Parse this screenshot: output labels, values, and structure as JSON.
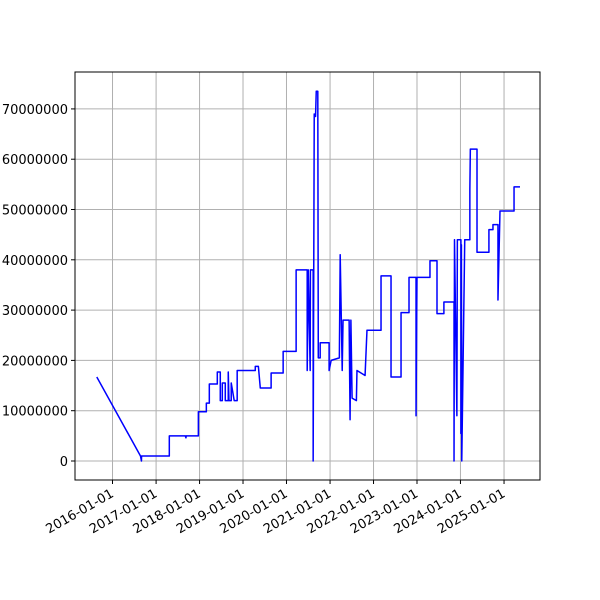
{
  "chart_data": {
    "type": "line",
    "x": [
      "2015-08-22",
      "2016-08-23",
      "2016-08-31",
      "2016-09-01",
      "2017-04-22",
      "2017-04-22",
      "2017-09-03",
      "2017-09-09",
      "2017-09-10",
      "2017-12-22",
      "2017-12-22",
      "2018-02-27",
      "2018-02-27",
      "2018-03-24",
      "2018-03-24",
      "2018-05-30",
      "2018-05-30",
      "2018-06-24",
      "2018-06-24",
      "2018-07-11",
      "2018-07-11",
      "2018-08-05",
      "2018-08-05",
      "2018-08-30",
      "2018-08-30",
      "2018-09-05",
      "2018-09-24",
      "2018-09-24",
      "2018-10-19",
      "2018-11-13",
      "2018-11-13",
      "2019-04-14",
      "2019-04-14",
      "2019-05-10",
      "2019-05-26",
      "2019-08-25",
      "2019-08-25",
      "2019-12-04",
      "2019-12-04",
      "2020-03-22",
      "2020-03-22",
      "2020-06-23",
      "2020-06-23",
      "2020-07-02",
      "2020-07-18",
      "2020-07-20",
      "2020-08-12",
      "2020-08-12",
      "2020-08-21",
      "2020-09-01",
      "2020-09-07",
      "2020-09-20",
      "2020-09-24",
      "2020-10-10",
      "2020-10-10",
      "2020-12-24",
      "2020-12-24",
      "2021-01-10",
      "2021-03-20",
      "2021-03-27",
      "2021-04-13",
      "2021-04-20",
      "2021-06-10",
      "2021-06-18",
      "2021-06-25",
      "2021-07-05",
      "2021-08-10",
      "2021-08-15",
      "2021-10-22",
      "2021-11-07",
      "2022-03-05",
      "2022-03-05",
      "2022-05-28",
      "2022-05-28",
      "2022-08-20",
      "2022-08-20",
      "2022-10-26",
      "2022-10-26",
      "2022-12-24",
      "2022-12-24",
      "2023-01-01",
      "2023-04-20",
      "2023-04-20",
      "2023-06-18",
      "2023-06-18",
      "2023-08-15",
      "2023-08-15",
      "2023-11-08",
      "2023-11-08",
      "2023-11-12",
      "2023-12-02",
      "2023-12-06",
      "2024-01-05",
      "2024-01-05",
      "2024-01-09",
      "2024-01-12",
      "2024-02-06",
      "2024-03-20",
      "2024-03-20",
      "2024-03-24",
      "2024-05-19",
      "2024-05-19",
      "2024-08-27",
      "2024-08-27",
      "2024-09-30",
      "2024-09-30",
      "2024-11-11",
      "2024-11-11",
      "2024-11-28",
      "2025-03-26",
      "2025-03-26",
      "2025-05-15"
    ],
    "series": [
      {
        "color": "#0000ff",
        "values": [
          16700000,
          1000000,
          0,
          1000000,
          1000000,
          5000000,
          5000000,
          4600000,
          5000000,
          5000000,
          9800000,
          9800000,
          11500000,
          11500000,
          15300000,
          15300000,
          17700000,
          17700000,
          12000000,
          12000000,
          15500000,
          15500000,
          12000000,
          12000000,
          17700000,
          12000000,
          12000000,
          15500000,
          12000000,
          12000000,
          18000000,
          18000000,
          18800000,
          18800000,
          14500000,
          14500000,
          17500000,
          17500000,
          21800000,
          21800000,
          38000000,
          38000000,
          18000000,
          38000000,
          18000000,
          38000000,
          38000000,
          0,
          69000000,
          68500000,
          73500000,
          73500000,
          20500000,
          20500000,
          23500000,
          23500000,
          18000000,
          20000000,
          20500000,
          41000000,
          18000000,
          28000000,
          28000000,
          8200000,
          28000000,
          12500000,
          12000000,
          18000000,
          17000000,
          26000000,
          26000000,
          36800000,
          36800000,
          16700000,
          16700000,
          29500000,
          29500000,
          36500000,
          36500000,
          9000000,
          36500000,
          36500000,
          39800000,
          39800000,
          29300000,
          29300000,
          31600000,
          31600000,
          0,
          44000000,
          9000000,
          44000000,
          44000000,
          5500000,
          43000000,
          0,
          44000000,
          44000000,
          54000000,
          62000000,
          62000000,
          41500000,
          41500000,
          46000000,
          46000000,
          47000000,
          47000000,
          32000000,
          49700000,
          49700000,
          54500000,
          54500000
        ]
      }
    ],
    "xlim": [
      "2015-02-20",
      "2025-10-30"
    ],
    "xticks": [
      "2016-01-01",
      "2017-01-01",
      "2018-01-01",
      "2019-01-01",
      "2020-01-01",
      "2021-01-01",
      "2022-01-01",
      "2023-01-01",
      "2024-01-01",
      "2025-01-01"
    ],
    "ylim": [
      -3780000,
      77340000
    ],
    "yticks": [
      0,
      10000000,
      20000000,
      30000000,
      40000000,
      50000000,
      60000000,
      70000000
    ],
    "grid": true
  }
}
